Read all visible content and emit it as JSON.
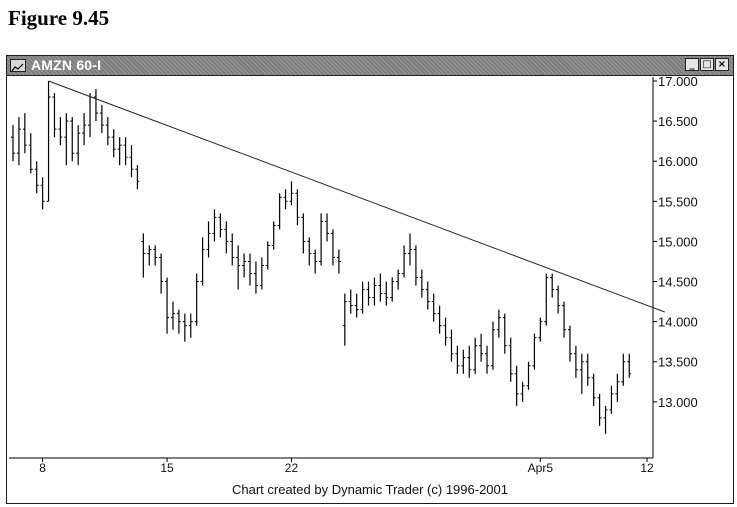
{
  "figure_title": "Figure 9.45",
  "window": {
    "title": "AMZN 60-I",
    "buttons": {
      "minimize": "_",
      "maximize": "□",
      "close": "×"
    }
  },
  "footer": "Chart created by Dynamic Trader (c) 1996-2001",
  "chart_data": {
    "type": "ohlc",
    "title": "AMZN 60-I",
    "ylim": [
      12.3,
      17.05
    ],
    "y_ticks": [
      13.0,
      13.5,
      14.0,
      14.5,
      15.0,
      15.5,
      16.0,
      16.5,
      17.0
    ],
    "y_tick_labels": [
      "13.000",
      "13.500",
      "14.000",
      "14.500",
      "15.000",
      "15.500",
      "16.000",
      "16.500",
      "17.000"
    ],
    "x_ticks": [
      {
        "label": "8",
        "bar": 5
      },
      {
        "label": "15",
        "bar": 26
      },
      {
        "label": "22",
        "bar": 47
      },
      {
        "label": "Apr5",
        "bar": 89
      },
      {
        "label": "12",
        "bar": 107
      }
    ],
    "bars": [
      [
        16.3,
        16.45,
        16.0,
        16.1
      ],
      [
        16.1,
        16.55,
        15.95,
        16.4
      ],
      [
        16.4,
        16.6,
        16.1,
        16.2
      ],
      [
        16.2,
        16.35,
        15.85,
        15.9
      ],
      [
        15.9,
        16.0,
        15.6,
        15.7
      ],
      [
        15.7,
        15.8,
        15.4,
        15.5
      ],
      [
        15.5,
        17.0,
        15.5,
        16.8
      ],
      [
        16.8,
        16.85,
        16.3,
        16.4
      ],
      [
        16.4,
        16.55,
        16.2,
        16.3
      ],
      [
        16.3,
        16.6,
        15.95,
        16.5
      ],
      [
        16.5,
        16.55,
        16.0,
        16.1
      ],
      [
        16.1,
        16.45,
        15.95,
        16.35
      ],
      [
        16.35,
        16.6,
        16.2,
        16.45
      ],
      [
        16.45,
        16.85,
        16.3,
        16.8
      ],
      [
        16.8,
        16.9,
        16.5,
        16.6
      ],
      [
        16.6,
        16.7,
        16.35,
        16.45
      ],
      [
        16.45,
        16.55,
        16.2,
        16.3
      ],
      [
        16.3,
        16.4,
        16.05,
        16.15
      ],
      [
        16.15,
        16.3,
        15.95,
        16.2
      ],
      [
        16.2,
        16.3,
        15.95,
        16.05
      ],
      [
        16.05,
        16.2,
        15.8,
        15.9
      ],
      [
        15.9,
        15.95,
        15.65,
        15.75
      ],
      [
        15.0,
        15.1,
        14.55,
        14.85
      ],
      [
        14.85,
        14.95,
        14.7,
        14.9
      ],
      [
        14.9,
        14.95,
        14.7,
        14.8
      ],
      [
        14.8,
        14.85,
        14.35,
        14.5
      ],
      [
        14.5,
        14.55,
        13.85,
        14.05
      ],
      [
        14.05,
        14.25,
        13.9,
        14.1
      ],
      [
        14.1,
        14.15,
        13.85,
        14.0
      ],
      [
        14.0,
        14.1,
        13.75,
        13.95
      ],
      [
        13.95,
        14.1,
        13.8,
        14.0
      ],
      [
        14.0,
        14.6,
        13.95,
        14.5
      ],
      [
        14.5,
        15.05,
        14.45,
        14.9
      ],
      [
        14.9,
        15.25,
        14.8,
        15.1
      ],
      [
        15.1,
        15.4,
        15.0,
        15.3
      ],
      [
        15.3,
        15.35,
        15.05,
        15.15
      ],
      [
        15.15,
        15.25,
        14.85,
        15.0
      ],
      [
        15.0,
        15.1,
        14.7,
        14.8
      ],
      [
        14.8,
        14.95,
        14.4,
        14.7
      ],
      [
        14.7,
        14.85,
        14.55,
        14.75
      ],
      [
        14.75,
        14.85,
        14.45,
        14.6
      ],
      [
        14.6,
        14.75,
        14.35,
        14.45
      ],
      [
        14.45,
        14.8,
        14.4,
        14.7
      ],
      [
        14.7,
        15.0,
        14.65,
        14.95
      ],
      [
        14.95,
        15.25,
        14.9,
        15.2
      ],
      [
        15.2,
        15.6,
        15.15,
        15.55
      ],
      [
        15.55,
        15.65,
        15.4,
        15.5
      ],
      [
        15.5,
        15.75,
        15.45,
        15.6
      ],
      [
        15.6,
        15.65,
        15.2,
        15.3
      ],
      [
        15.3,
        15.35,
        14.85,
        15.0
      ],
      [
        15.0,
        15.05,
        14.7,
        14.85
      ],
      [
        14.85,
        14.9,
        14.6,
        14.75
      ],
      [
        14.75,
        15.35,
        14.7,
        15.25
      ],
      [
        15.25,
        15.35,
        15.0,
        15.1
      ],
      [
        15.1,
        15.15,
        14.7,
        14.8
      ],
      [
        14.8,
        14.9,
        14.6,
        14.75
      ],
      [
        13.95,
        14.35,
        13.7,
        14.25
      ],
      [
        14.25,
        14.4,
        14.1,
        14.2
      ],
      [
        14.2,
        14.35,
        14.05,
        14.15
      ],
      [
        14.15,
        14.5,
        14.1,
        14.4
      ],
      [
        14.4,
        14.5,
        14.2,
        14.3
      ],
      [
        14.3,
        14.55,
        14.2,
        14.45
      ],
      [
        14.45,
        14.6,
        14.25,
        14.35
      ],
      [
        14.35,
        14.5,
        14.2,
        14.3
      ],
      [
        14.3,
        14.55,
        14.25,
        14.5
      ],
      [
        14.5,
        14.65,
        14.4,
        14.6
      ],
      [
        14.6,
        14.95,
        14.55,
        14.85
      ],
      [
        14.85,
        15.1,
        14.7,
        14.9
      ],
      [
        14.9,
        14.95,
        14.45,
        14.55
      ],
      [
        14.55,
        14.65,
        14.3,
        14.4
      ],
      [
        14.4,
        14.5,
        14.15,
        14.25
      ],
      [
        14.25,
        14.35,
        14.0,
        14.1
      ],
      [
        14.1,
        14.2,
        13.85,
        13.95
      ],
      [
        13.95,
        14.05,
        13.7,
        13.8
      ],
      [
        13.8,
        13.9,
        13.5,
        13.6
      ],
      [
        13.6,
        13.7,
        13.35,
        13.45
      ],
      [
        13.45,
        13.65,
        13.35,
        13.55
      ],
      [
        13.55,
        13.7,
        13.3,
        13.4
      ],
      [
        13.4,
        13.8,
        13.35,
        13.7
      ],
      [
        13.7,
        13.85,
        13.5,
        13.6
      ],
      [
        13.6,
        13.7,
        13.35,
        13.45
      ],
      [
        13.45,
        14.0,
        13.4,
        13.9
      ],
      [
        13.9,
        14.15,
        13.8,
        14.05
      ],
      [
        14.05,
        14.1,
        13.6,
        13.7
      ],
      [
        13.7,
        13.8,
        13.25,
        13.35
      ],
      [
        13.35,
        13.45,
        12.95,
        13.1
      ],
      [
        13.1,
        13.25,
        13.0,
        13.2
      ],
      [
        13.2,
        13.5,
        13.15,
        13.45
      ],
      [
        13.45,
        13.85,
        13.4,
        13.8
      ],
      [
        13.8,
        14.05,
        13.75,
        14.0
      ],
      [
        14.0,
        14.6,
        13.95,
        14.55
      ],
      [
        14.55,
        14.6,
        14.3,
        14.4
      ],
      [
        14.4,
        14.45,
        14.1,
        14.2
      ],
      [
        14.2,
        14.25,
        13.8,
        13.9
      ],
      [
        13.9,
        13.95,
        13.5,
        13.6
      ],
      [
        13.6,
        13.7,
        13.3,
        13.4
      ],
      [
        13.4,
        13.6,
        13.1,
        13.5
      ],
      [
        13.5,
        13.6,
        13.2,
        13.3
      ],
      [
        13.3,
        13.35,
        12.95,
        13.05
      ],
      [
        13.05,
        13.1,
        12.7,
        12.8
      ],
      [
        12.8,
        12.95,
        12.6,
        12.9
      ],
      [
        12.9,
        13.2,
        12.85,
        13.1
      ],
      [
        13.1,
        13.35,
        13.0,
        13.25
      ],
      [
        13.25,
        13.6,
        13.2,
        13.5
      ],
      [
        13.5,
        13.6,
        13.3,
        13.35
      ]
    ],
    "trendline": {
      "from": {
        "bar": 6,
        "price": 17.0
      },
      "to": {
        "bar": 110,
        "price": 14.12
      }
    }
  }
}
